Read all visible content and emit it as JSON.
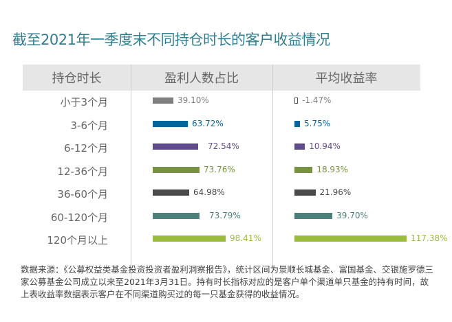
{
  "title": "截至2021年一季度末不同持仓时长的客户收益情况",
  "chart_data": {
    "type": "table",
    "headers": [
      "持仓时长",
      "盈利人数占比",
      "平均收益率"
    ],
    "categories": [
      "小于3个月",
      "3-6个月",
      "6-12个月",
      "12-36个月",
      "36-60个月",
      "60-120个月",
      "120个月以上"
    ],
    "series": [
      {
        "name": "盈利人数占比",
        "values": [
          39.1,
          63.72,
          72.54,
          73.76,
          64.98,
          73.79,
          98.41
        ],
        "labels": [
          "39.10%",
          "63.72%",
          "72.54%",
          "73.76%",
          "64.98%",
          "73.79%",
          "98.41%"
        ]
      },
      {
        "name": "平均收益率",
        "values": [
          -1.47,
          5.75,
          10.94,
          18.93,
          21.96,
          39.7,
          117.38
        ],
        "labels": [
          "-1.47%",
          "5.75%",
          "10.94%",
          "18.93%",
          "21.96%",
          "39.70%",
          "117.38%"
        ]
      }
    ],
    "colors": [
      "#7f7f7f",
      "#00669c",
      "#5f4b8b",
      "#77933c",
      "#4a4a4a",
      "#4f7f7a",
      "#9bbb3b"
    ]
  },
  "note": "数据来源：《公募权益类基金投资投资者盈利洞察报告》，统计区间为景顺长城基金、富国基金、交银施罗德三家公募基金公司成立以来至2021年3月31日。持有时长指标对应的是客户单个渠道单只基金的持有时间，故上表收益率数据表示客户在不同渠道购买过的每一只基金获得的收益情况。"
}
